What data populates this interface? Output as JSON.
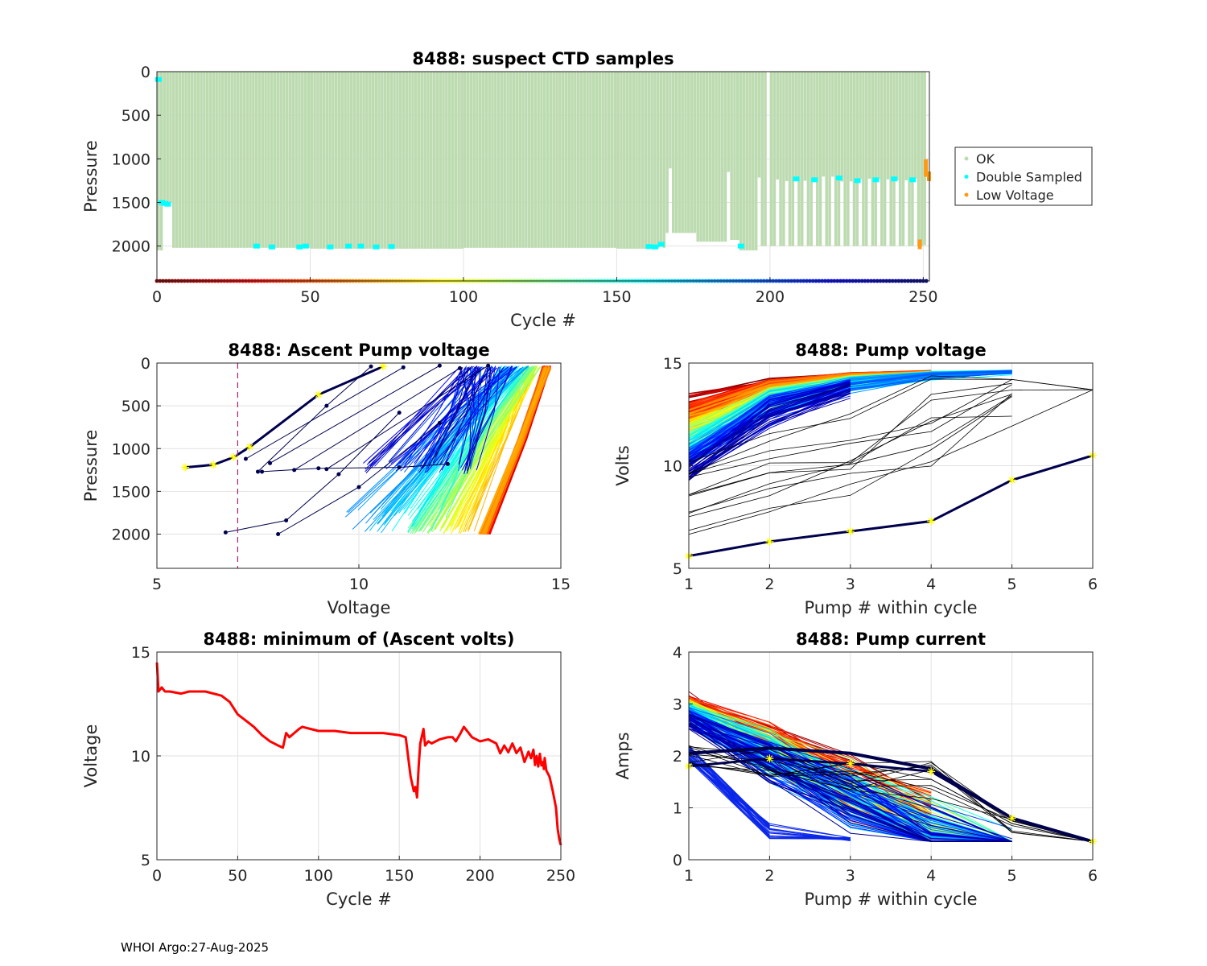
{
  "footer": "WHOI Argo:27-Aug-2025",
  "colors": {
    "ok": "#bddbb1",
    "double": "#00ffff",
    "low": "#ff9913",
    "min_line": "#ff0000",
    "marker": "#ffff00",
    "dark": "#00004d",
    "grid": "#e2e2e2"
  },
  "chart_data": [
    {
      "id": "ctd",
      "type": "bar",
      "title": "8488: suspect CTD samples",
      "xlabel": "Cycle #",
      "ylabel": "Pressure",
      "xlim": [
        0,
        252
      ],
      "ylim": [
        2400,
        0
      ],
      "xticks": [
        0,
        50,
        100,
        150,
        200,
        250
      ],
      "yticks": [
        0,
        500,
        1000,
        1500,
        2000
      ],
      "legend": [
        "OK",
        "Double Sampled",
        "Low Voltage"
      ],
      "series": [
        {
          "name": "OK",
          "segments": [
            [
              0,
              2050
            ],
            [
              5,
              2020
            ],
            [
              50,
              2030
            ],
            [
              100,
              2020
            ],
            [
              150,
              2030
            ],
            [
              160,
              2020
            ],
            [
              166,
              1850
            ],
            [
              176,
              1950
            ],
            [
              186,
              1930
            ],
            [
              190,
              2050
            ],
            [
              196,
              2000
            ],
            [
              200,
              2000
            ],
            [
              220,
              2000
            ],
            [
              250,
              1990
            ]
          ]
        },
        {
          "name": "Double Sampled",
          "points": [
            [
              0,
              90
            ],
            [
              1,
              1500
            ],
            [
              2,
              1510
            ],
            [
              3,
              1520
            ],
            [
              32,
              2000
            ],
            [
              37,
              2010
            ],
            [
              46,
              2010
            ],
            [
              48,
              2000
            ],
            [
              56,
              2010
            ],
            [
              62,
              2000
            ],
            [
              66,
              2000
            ],
            [
              71,
              2010
            ],
            [
              76,
              2005
            ],
            [
              160,
              2005
            ],
            [
              162,
              2010
            ],
            [
              164,
              1980
            ],
            [
              190,
              2000
            ],
            [
              208,
              1230
            ],
            [
              214,
              1240
            ],
            [
              222,
              1220
            ],
            [
              228,
              1250
            ],
            [
              234,
              1240
            ],
            [
              240,
              1230
            ],
            [
              246,
              1240
            ]
          ]
        },
        {
          "name": "Low Voltage",
          "points": [
            [
              249,
              1980
            ],
            [
              251,
              1060
            ],
            [
              251,
              1150
            ],
            [
              252,
              1200
            ]
          ]
        }
      ]
    },
    {
      "id": "ascent",
      "type": "line",
      "title": "8488: Ascent Pump voltage",
      "xlabel": "Voltage",
      "ylabel": "Pressure",
      "xlim": [
        5,
        15
      ],
      "ylim": [
        2400,
        0
      ],
      "xticks": [
        5,
        10,
        15
      ],
      "yticks": [
        0,
        500,
        1000,
        1500,
        2000
      ],
      "threshold_voltage": 7.0
    },
    {
      "id": "pumpv",
      "type": "line",
      "title": "8488: Pump voltage",
      "xlabel": "Pump # within cycle",
      "ylabel": "Volts",
      "xlim": [
        1,
        6
      ],
      "ylim": [
        5,
        15
      ],
      "xticks": [
        1,
        2,
        3,
        4,
        5,
        6
      ],
      "yticks": [
        5,
        10,
        15
      ],
      "last_cycle": [
        5.6,
        6.3,
        6.8,
        7.3,
        9.3,
        10.5
      ]
    },
    {
      "id": "minv",
      "type": "line",
      "title": "8488: minimum of (Ascent volts)",
      "xlabel": "Cycle #",
      "ylabel": "Voltage",
      "xlim": [
        0,
        250
      ],
      "ylim": [
        5,
        15
      ],
      "xticks": [
        0,
        50,
        100,
        150,
        200,
        250
      ],
      "yticks": [
        5,
        10,
        15
      ],
      "x": [
        0,
        1,
        3,
        5,
        8,
        15,
        20,
        30,
        40,
        45,
        50,
        55,
        60,
        65,
        70,
        75,
        78,
        80,
        82,
        85,
        88,
        90,
        95,
        100,
        110,
        120,
        130,
        140,
        150,
        154,
        157,
        159,
        160,
        161,
        162,
        163,
        165,
        166,
        168,
        170,
        175,
        180,
        183,
        185,
        188,
        190,
        195,
        200,
        205,
        210,
        215,
        220,
        225,
        230,
        233,
        235,
        237,
        239,
        240,
        241,
        243,
        245,
        247,
        248,
        249,
        250
      ],
      "y": [
        14.5,
        13.1,
        13.3,
        13.1,
        13.1,
        13.0,
        13.1,
        13.1,
        12.9,
        12.6,
        12.0,
        11.7,
        11.4,
        11.0,
        10.7,
        10.5,
        10.4,
        11.1,
        10.9,
        11.1,
        11.3,
        11.4,
        11.3,
        11.2,
        11.2,
        11.1,
        11.1,
        11.1,
        11.0,
        10.9,
        9.0,
        8.3,
        8.5,
        8.0,
        9.5,
        10.6,
        11.3,
        10.5,
        10.7,
        10.6,
        10.8,
        10.9,
        10.9,
        10.7,
        11.1,
        11.4,
        10.9,
        10.7,
        10.8,
        10.6,
        10.5,
        10.6,
        10.4,
        10.2,
        10.3,
        10.0,
        10.1,
        9.7,
        9.9,
        9.3,
        9.0,
        8.3,
        7.5,
        6.5,
        6.0,
        5.7
      ]
    },
    {
      "id": "current",
      "type": "line",
      "title": "8488: Pump current",
      "xlabel": "Pump # within cycle",
      "ylabel": "Amps",
      "xlim": [
        1,
        6
      ],
      "ylim": [
        0,
        4
      ],
      "xticks": [
        1,
        2,
        3,
        4,
        5,
        6
      ],
      "yticks": [
        0,
        1,
        2,
        3,
        4
      ],
      "last_cycle": [
        1.8,
        1.95,
        1.85,
        1.7,
        0.8,
        0.35
      ]
    }
  ]
}
